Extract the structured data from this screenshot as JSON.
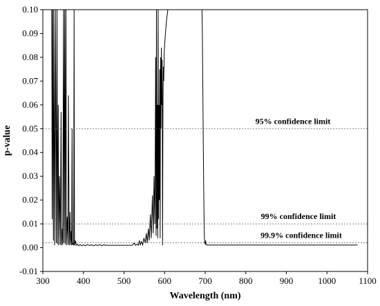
{
  "chart_data": {
    "type": "line",
    "xlabel": "Wavelength (nm)",
    "ylabel": "p-value",
    "xlim": [
      300,
      1100
    ],
    "ylim": [
      -0.01,
      0.1
    ],
    "x_ticks": [
      300,
      400,
      500,
      600,
      700,
      800,
      900,
      1000,
      1100
    ],
    "y_ticks": [
      -0.01,
      0.0,
      0.01,
      0.02,
      0.03,
      0.04,
      0.05,
      0.06,
      0.07,
      0.08,
      0.09,
      0.1
    ],
    "grid": false,
    "series": [
      {
        "color": "#000000",
        "points": [
          [
            322,
            0.1
          ],
          [
            323,
            0.012
          ],
          [
            324,
            0.1
          ],
          [
            326,
            0.003
          ],
          [
            327,
            0.1
          ],
          [
            329,
            0.001
          ],
          [
            331,
            0.1
          ],
          [
            333,
            0.002
          ],
          [
            335,
            0.1
          ],
          [
            336,
            0.0015
          ],
          [
            338,
            0.06
          ],
          [
            339,
            0.001
          ],
          [
            341,
            0.03
          ],
          [
            343,
            0.0012
          ],
          [
            345,
            0.057
          ],
          [
            346,
            0.001
          ],
          [
            348,
            0.008
          ],
          [
            349,
            0.0012
          ],
          [
            351,
            0.1
          ],
          [
            352,
            0.002
          ],
          [
            354,
            0.1
          ],
          [
            355,
            0.0015
          ],
          [
            357,
            0.1
          ],
          [
            358,
            0.001
          ],
          [
            360,
            0.013
          ],
          [
            362,
            0.0012
          ],
          [
            363,
            0.064
          ],
          [
            365,
            0.001
          ],
          [
            367,
            0.015
          ],
          [
            368,
            0.0012
          ],
          [
            370,
            0.007
          ],
          [
            371,
            0.001
          ],
          [
            372,
            0.05
          ],
          [
            373,
            0.0012
          ],
          [
            375,
            0.002
          ],
          [
            376,
            0.001
          ],
          [
            377,
            0.1
          ],
          [
            378,
            0.001
          ],
          [
            380,
            0.003
          ],
          [
            382,
            0.001
          ],
          [
            385,
            0.0015
          ],
          [
            388,
            0.0008
          ],
          [
            392,
            0.0013
          ],
          [
            396,
            0.0008
          ],
          [
            400,
            0.0012
          ],
          [
            405,
            0.0008
          ],
          [
            410,
            0.0013
          ],
          [
            415,
            0.0009
          ],
          [
            420,
            0.0012
          ],
          [
            425,
            0.0008
          ],
          [
            430,
            0.0012
          ],
          [
            435,
            0.0009
          ],
          [
            440,
            0.0013
          ],
          [
            445,
            0.0008
          ],
          [
            450,
            0.0012
          ],
          [
            455,
            0.001
          ],
          [
            520,
            0.001
          ],
          [
            525,
            0.002
          ],
          [
            528,
            0.001
          ],
          [
            532,
            0.0015
          ],
          [
            535,
            0.001
          ],
          [
            538,
            0.003
          ],
          [
            540,
            0.0012
          ],
          [
            543,
            0.0025
          ],
          [
            546,
            0.0012
          ],
          [
            549,
            0.004
          ],
          [
            552,
            0.002
          ],
          [
            555,
            0.006
          ],
          [
            557,
            0.002
          ],
          [
            560,
            0.008
          ],
          [
            562,
            0.003
          ],
          [
            565,
            0.014
          ],
          [
            567,
            0.004
          ],
          [
            570,
            0.022
          ],
          [
            572,
            0.006
          ],
          [
            574,
            0.03
          ],
          [
            576,
            0.01
          ],
          [
            578,
            0.08
          ],
          [
            579,
            0.005
          ],
          [
            580,
            0.1
          ],
          [
            581,
            0.008
          ],
          [
            582,
            0.06
          ],
          [
            583,
            0.004
          ],
          [
            584,
            0.1
          ],
          [
            585,
            0.012
          ],
          [
            586,
            0.06
          ],
          [
            587,
            0.02
          ],
          [
            588,
            0.075
          ],
          [
            589,
            0.004
          ],
          [
            590,
            0.08
          ],
          [
            591,
            0.05
          ],
          [
            592,
            0.084
          ],
          [
            593,
            0.06
          ],
          [
            594,
            0.079
          ],
          [
            595,
            0.001
          ],
          [
            596,
            0.06
          ],
          [
            597,
            0.076
          ],
          [
            598,
            0.07
          ],
          [
            599,
            0.082
          ],
          [
            600,
            0.085
          ],
          [
            602,
            0.09
          ],
          [
            605,
            0.096
          ],
          [
            608,
            0.1
          ],
          [
            611,
            0.101
          ]
        ]
      },
      {
        "color": "#000000",
        "points": [
          [
            692,
            0.101
          ],
          [
            693,
            0.09
          ],
          [
            694,
            0.07
          ],
          [
            695,
            0.05
          ],
          [
            696,
            0.03
          ],
          [
            697,
            0.015
          ],
          [
            698,
            0.004
          ],
          [
            699,
            0.002
          ],
          [
            700,
            0.0015
          ],
          [
            701,
            0.003
          ],
          [
            702,
            0.0012
          ],
          [
            710,
            0.0011
          ],
          [
            800,
            0.0011
          ],
          [
            900,
            0.0011
          ],
          [
            1000,
            0.0011
          ],
          [
            1075,
            0.0011
          ]
        ]
      }
    ],
    "reference_lines": [
      {
        "y": 0.05,
        "label": "95% confidence limit"
      },
      {
        "y": 0.01,
        "label": "99% confidence limit"
      },
      {
        "y": 0.002,
        "label": "99.9% confidence limit"
      }
    ]
  }
}
